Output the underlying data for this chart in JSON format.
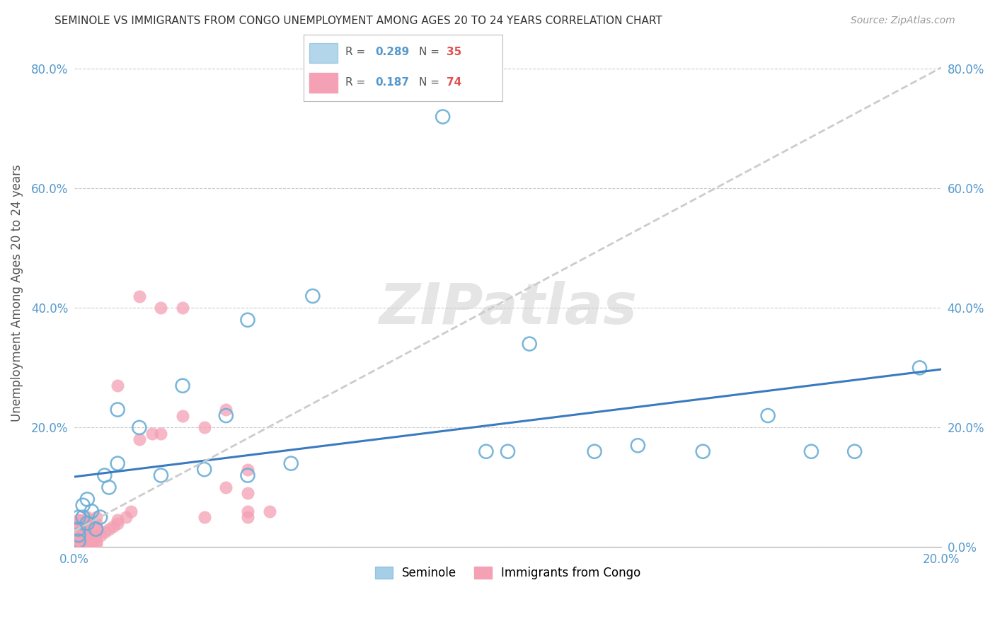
{
  "title": "SEMINOLE VS IMMIGRANTS FROM CONGO UNEMPLOYMENT AMONG AGES 20 TO 24 YEARS CORRELATION CHART",
  "source": "Source: ZipAtlas.com",
  "ylabel": "Unemployment Among Ages 20 to 24 years",
  "xlim": [
    0.0,
    0.2
  ],
  "ylim": [
    0.0,
    0.85
  ],
  "xticks": [
    0.0,
    0.04,
    0.08,
    0.12,
    0.16,
    0.2
  ],
  "yticks": [
    0.0,
    0.2,
    0.4,
    0.6,
    0.8
  ],
  "ytick_labels": [
    "",
    "20.0%",
    "40.0%",
    "60.0%",
    "80.0%"
  ],
  "right_ytick_labels": [
    "0.0%",
    "20.0%",
    "40.0%",
    "60.0%",
    "80.0%"
  ],
  "xtick_labels": [
    "0.0%",
    "",
    "",
    "",
    "",
    "20.0%"
  ],
  "seminole_color": "#6baed6",
  "congo_color": "#f4a0b5",
  "seminole_line_color": "#3a7abf",
  "congo_line_color": "#cccccc",
  "seminole_R": 0.289,
  "seminole_N": 35,
  "congo_R": 0.187,
  "congo_N": 74,
  "background_color": "#ffffff",
  "grid_color": "#cccccc",
  "seminole_x": [
    0.001,
    0.001,
    0.001,
    0.001,
    0.002,
    0.002,
    0.003,
    0.003,
    0.004,
    0.005,
    0.006,
    0.007,
    0.008,
    0.01,
    0.01,
    0.015,
    0.02,
    0.025,
    0.03,
    0.035,
    0.04,
    0.04,
    0.05,
    0.055,
    0.085,
    0.095,
    0.1,
    0.105,
    0.12,
    0.13,
    0.145,
    0.16,
    0.17,
    0.18,
    0.195
  ],
  "seminole_y": [
    0.01,
    0.02,
    0.03,
    0.05,
    0.05,
    0.07,
    0.04,
    0.08,
    0.06,
    0.03,
    0.05,
    0.12,
    0.1,
    0.14,
    0.23,
    0.2,
    0.12,
    0.27,
    0.13,
    0.22,
    0.12,
    0.38,
    0.14,
    0.42,
    0.72,
    0.16,
    0.16,
    0.34,
    0.16,
    0.17,
    0.16,
    0.22,
    0.16,
    0.16,
    0.3
  ],
  "congo_x": [
    0.001,
    0.001,
    0.001,
    0.001,
    0.001,
    0.001,
    0.001,
    0.001,
    0.001,
    0.001,
    0.001,
    0.001,
    0.001,
    0.001,
    0.001,
    0.001,
    0.001,
    0.001,
    0.001,
    0.001,
    0.002,
    0.002,
    0.002,
    0.002,
    0.002,
    0.002,
    0.002,
    0.002,
    0.002,
    0.002,
    0.003,
    0.003,
    0.003,
    0.003,
    0.003,
    0.003,
    0.003,
    0.003,
    0.003,
    0.003,
    0.004,
    0.004,
    0.004,
    0.005,
    0.005,
    0.005,
    0.005,
    0.005,
    0.005,
    0.006,
    0.007,
    0.008,
    0.009,
    0.01,
    0.01,
    0.01,
    0.012,
    0.013,
    0.015,
    0.015,
    0.018,
    0.02,
    0.02,
    0.025,
    0.025,
    0.03,
    0.03,
    0.035,
    0.035,
    0.04,
    0.04,
    0.04,
    0.04,
    0.045
  ],
  "congo_y": [
    0.005,
    0.005,
    0.005,
    0.01,
    0.01,
    0.01,
    0.015,
    0.015,
    0.02,
    0.02,
    0.025,
    0.025,
    0.03,
    0.03,
    0.035,
    0.035,
    0.04,
    0.04,
    0.045,
    0.045,
    0.005,
    0.005,
    0.01,
    0.01,
    0.015,
    0.015,
    0.02,
    0.025,
    0.03,
    0.04,
    0.005,
    0.005,
    0.01,
    0.01,
    0.02,
    0.025,
    0.03,
    0.035,
    0.04,
    0.05,
    0.005,
    0.01,
    0.02,
    0.005,
    0.01,
    0.02,
    0.03,
    0.04,
    0.05,
    0.02,
    0.025,
    0.03,
    0.035,
    0.04,
    0.045,
    0.27,
    0.05,
    0.06,
    0.18,
    0.42,
    0.19,
    0.19,
    0.4,
    0.4,
    0.22,
    0.05,
    0.2,
    0.23,
    0.1,
    0.05,
    0.09,
    0.13,
    0.06,
    0.06
  ]
}
